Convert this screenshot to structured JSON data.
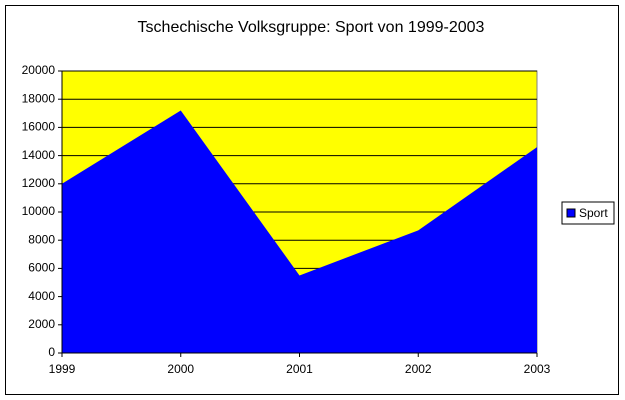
{
  "chart_data": {
    "type": "area",
    "title": "Tschechische Volksgruppe: Sport von 1999-2003",
    "categories": [
      "1999",
      "2000",
      "2001",
      "2002",
      "2003"
    ],
    "series": [
      {
        "name": "Sport",
        "color": "#0000ff",
        "values": [
          12000,
          17200,
          5500,
          8700,
          14600
        ]
      }
    ],
    "ylim": [
      0,
      20000
    ],
    "yticks": [
      0,
      2000,
      4000,
      6000,
      8000,
      10000,
      12000,
      14000,
      16000,
      18000,
      20000
    ],
    "grid": true,
    "plot_background": "#ffff00",
    "legend": "right"
  }
}
